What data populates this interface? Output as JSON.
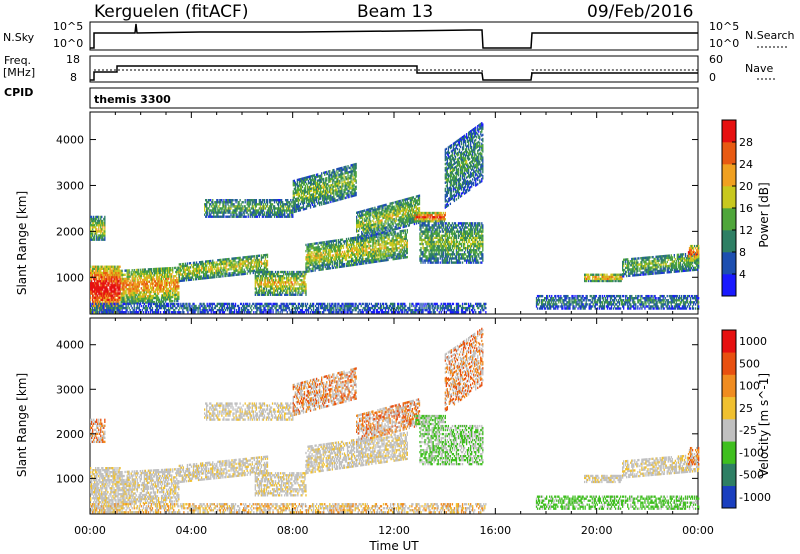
{
  "header": {
    "station": "Kerguelen (fitACF)",
    "beam": "Beam 13",
    "date": "09/Feb/2016"
  },
  "top_panels": {
    "nsky_label": "N.Sky",
    "nsky_ticks": [
      "10^5",
      "10^0"
    ],
    "nsearch_label": "N.Search",
    "nsearch_ticks": [
      "10^5",
      "10^0"
    ],
    "freq_label_1": "Freq.",
    "freq_label_2": "[MHz]",
    "freq_ticks": [
      "18",
      "8"
    ],
    "nave_label": "Nave",
    "nave_ticks": [
      "60",
      "0"
    ],
    "cpid_label": "CPID",
    "cpid_value": "themis 3300"
  },
  "chart_data": [
    {
      "type": "heatmap",
      "ylabel": "Slant Range [km]",
      "xlabel": "",
      "yticks": [
        "1000",
        "2000",
        "3000",
        "4000"
      ],
      "ylim": [
        200,
        4600
      ],
      "xlim": [
        0,
        24
      ],
      "colorbar_label": "Power [dB]",
      "colorbar_ticks": [
        "4",
        "8",
        "12",
        "16",
        "20",
        "24",
        "28"
      ],
      "colorbar_colors": [
        "#1a1aff",
        "#1d4fb0",
        "#2e7f64",
        "#4fa63a",
        "#c8c81e",
        "#f0a020",
        "#e85a12",
        "#e61010"
      ]
    },
    {
      "type": "heatmap",
      "ylabel": "Slant Range [km]",
      "xlabel": "Time UT",
      "yticks": [
        "1000",
        "2000",
        "3000",
        "4000"
      ],
      "xticks": [
        "00:00",
        "04:00",
        "08:00",
        "12:00",
        "16:00",
        "20:00",
        "00:00"
      ],
      "ylim": [
        200,
        4600
      ],
      "xlim": [
        0,
        24
      ],
      "colorbar_label": "Velocity [m s^-1]",
      "colorbar_ticks": [
        "1000",
        "500",
        "100",
        "25",
        "-25",
        "-100",
        "-500",
        "-1000"
      ],
      "colorbar_colors": [
        "#1a3fbf",
        "#2e7f64",
        "#3fbf1f",
        "#c0c0c0",
        "#f0c030",
        "#f08c20",
        "#e85010",
        "#e61010"
      ]
    }
  ]
}
